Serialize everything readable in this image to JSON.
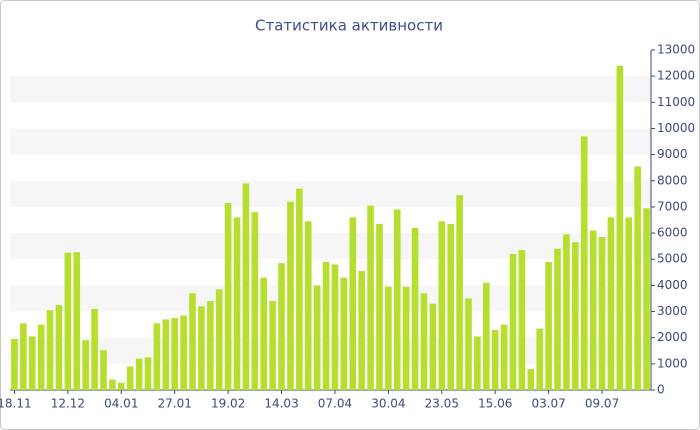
{
  "chart_data": {
    "type": "bar",
    "title": "Статистика активности",
    "categories": [
      "18.11",
      null,
      null,
      null,
      null,
      null,
      "12.12",
      null,
      null,
      null,
      null,
      null,
      "04.01",
      null,
      null,
      null,
      null,
      null,
      "27.01",
      null,
      null,
      null,
      null,
      null,
      "19.02",
      null,
      null,
      null,
      null,
      null,
      "14.03",
      null,
      null,
      null,
      null,
      null,
      "07.04",
      null,
      null,
      null,
      null,
      null,
      "30.04",
      null,
      null,
      null,
      null,
      null,
      "23.05",
      null,
      null,
      null,
      null,
      null,
      "15.06",
      null,
      null,
      null,
      null,
      null,
      "03.07",
      null,
      null,
      null,
      null,
      null,
      "09.07",
      null,
      null,
      null,
      null,
      null
    ],
    "values": [
      1950,
      2550,
      2050,
      2500,
      3050,
      3250,
      5250,
      5270,
      1900,
      3100,
      1520,
      400,
      280,
      900,
      1200,
      1250,
      2550,
      2700,
      2750,
      2850,
      3700,
      3200,
      3400,
      3850,
      7150,
      6600,
      7900,
      6800,
      4300,
      3400,
      4850,
      7200,
      7700,
      6450,
      4000,
      4900,
      4800,
      4300,
      6600,
      4550,
      7050,
      6350,
      3950,
      6900,
      3950,
      6200,
      3700,
      3300,
      6450,
      6350,
      7450,
      3500,
      2050,
      4100,
      2300,
      2500,
      5200,
      5350,
      800,
      2350,
      4900,
      5400,
      5950,
      5650,
      9700,
      6100,
      5850,
      6600,
      12400,
      6600,
      8550,
      6950
    ],
    "color": "#b5df2c",
    "ylim": [
      0,
      13000
    ],
    "yticks": [
      0,
      1000,
      2000,
      3000,
      4000,
      5000,
      6000,
      7000,
      8000,
      9000,
      10000,
      11000,
      12000,
      13000
    ],
    "grid": true
  }
}
